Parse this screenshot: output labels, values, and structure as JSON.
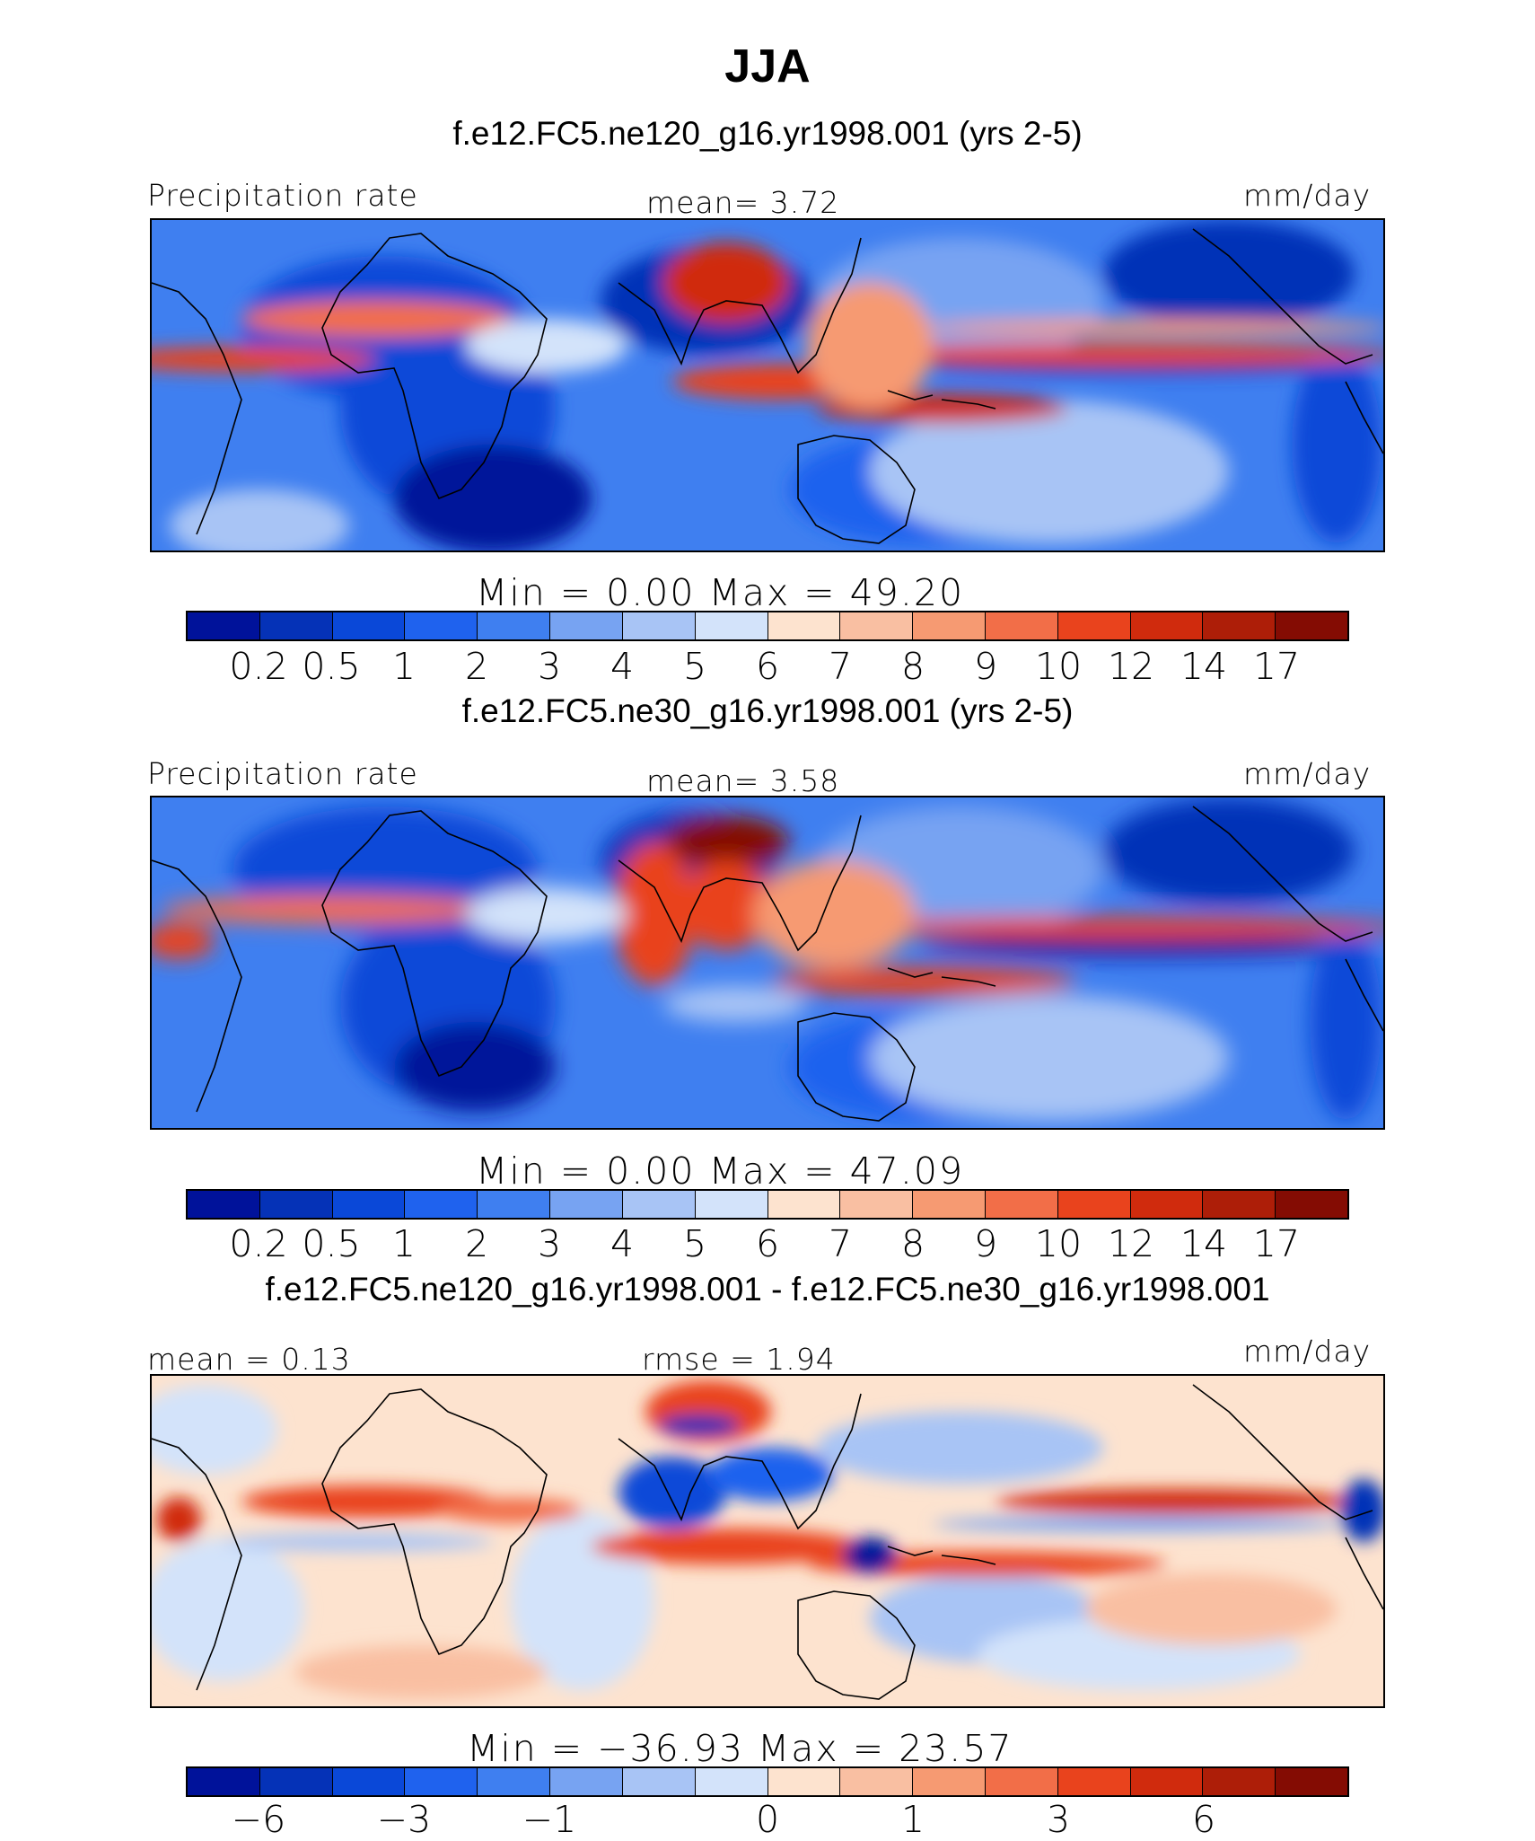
{
  "figure_title": "JJA",
  "units": "mm/day",
  "panels": [
    {
      "caption": "f.e12.FC5.ne120_g16.yr1998.001 (yrs 2-5)",
      "left_label": "Precipitation rate",
      "center_label": "mean=   3.72",
      "right_label": "mm/day",
      "min_max": "Min  =    0.00  Max  =   49.20"
    },
    {
      "caption": "f.e12.FC5.ne30_g16.yr1998.001 (yrs 2-5)",
      "left_label": "Precipitation rate",
      "center_label": "mean=   3.58",
      "right_label": "mm/day",
      "min_max": "Min  =    0.00  Max  =   47.09"
    },
    {
      "caption": "f.e12.FC5.ne120_g16.yr1998.001 - f.e12.FC5.ne30_g16.yr1998.001",
      "left_label": "mean  =   0.13",
      "center_label": "rmse  =   1.94",
      "right_label": "mm/day",
      "min_max": "Min  = −36.93  Max  =   23.57"
    }
  ],
  "precip_colorbar": {
    "colors": [
      "#00129a",
      "#0532b7",
      "#0a48d8",
      "#1f62ee",
      "#3f7ff0",
      "#77a3f2",
      "#a8c4f5",
      "#d3e3fa",
      "#fde3cf",
      "#f9bfa2",
      "#f69a72",
      "#f26e48",
      "#e9431d",
      "#d02b0d",
      "#ad1e08",
      "#840c03"
    ],
    "ticks": [
      "0.2",
      "0.5",
      "1",
      "2",
      "3",
      "4",
      "5",
      "6",
      "7",
      "8",
      "9",
      "10",
      "12",
      "14",
      "17"
    ]
  },
  "diff_colorbar": {
    "colors": [
      "#00129a",
      "#0532b7",
      "#0a48d8",
      "#1f62ee",
      "#3f7ff0",
      "#77a3f2",
      "#a8c4f5",
      "#d3e3fa",
      "#fde3cf",
      "#f9bfa2",
      "#f69a72",
      "#f26e48",
      "#e9431d",
      "#d02b0d",
      "#ad1e08",
      "#840c03"
    ],
    "ticks": [
      "−6",
      "−3",
      "−1",
      "0",
      "1",
      "3",
      "6"
    ]
  }
}
